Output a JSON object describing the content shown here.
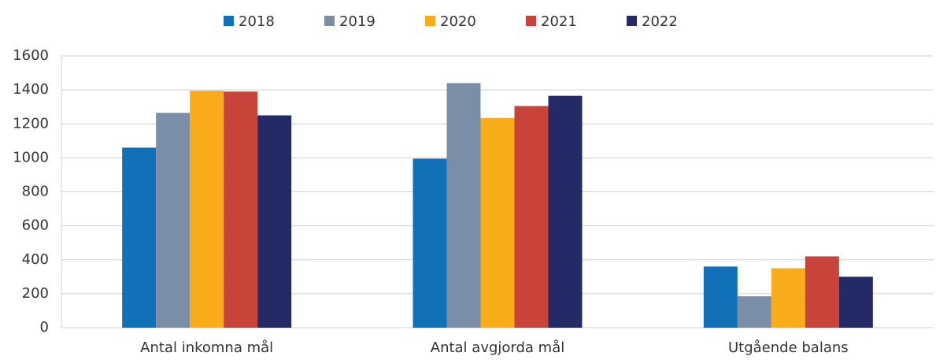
{
  "chart_data": {
    "type": "bar",
    "categories": [
      "Antal inkomna mål",
      "Antal avgjorda mål",
      "Utgående balans"
    ],
    "series": [
      {
        "name": "2018",
        "color": "#1070b8",
        "values": [
          1060,
          995,
          360
        ]
      },
      {
        "name": "2019",
        "color": "#7b8ea8",
        "values": [
          1265,
          1440,
          185
        ]
      },
      {
        "name": "2020",
        "color": "#f8ac1a",
        "values": [
          1395,
          1235,
          350
        ]
      },
      {
        "name": "2021",
        "color": "#c8433a",
        "values": [
          1390,
          1305,
          420
        ]
      },
      {
        "name": "2022",
        "color": "#232a66",
        "values": [
          1250,
          1365,
          300
        ]
      }
    ],
    "ylim": [
      0,
      1600
    ],
    "yticks": [
      0,
      200,
      400,
      600,
      800,
      1000,
      1200,
      1400,
      1600
    ],
    "grid": true,
    "legend": "top"
  }
}
